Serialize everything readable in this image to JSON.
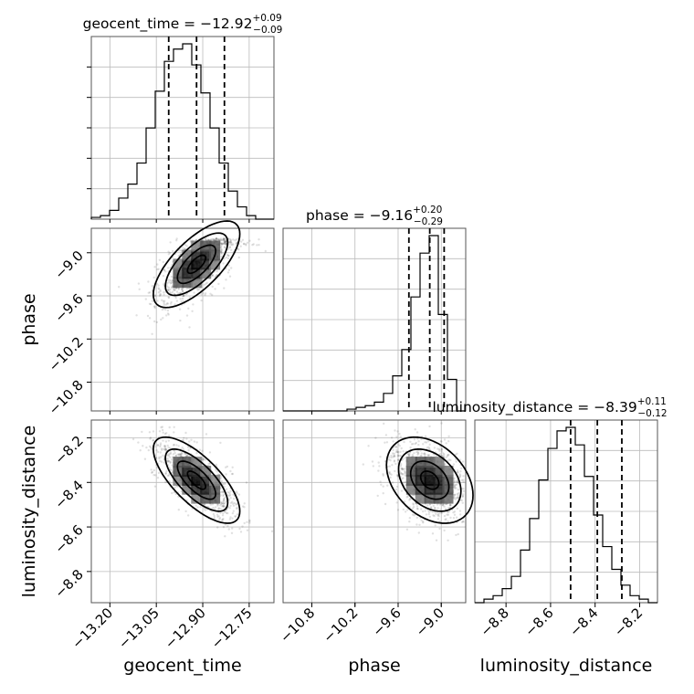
{
  "chart_data": {
    "type": "corner",
    "parameters": [
      {
        "name": "geocent_time",
        "label": "geocent_time",
        "median": -12.92,
        "plus": "0.09",
        "minus": "0.09",
        "title_main": "geocent_time = −12.92",
        "title_plus": "+0.09",
        "title_minus": "−0.09",
        "quantiles": [
          -13.01,
          -12.92,
          -12.83
        ],
        "range": [
          -13.26,
          -12.67
        ],
        "ticks": [
          -13.2,
          -13.05,
          -12.9,
          -12.75
        ],
        "tick_labels": [
          "−13.20",
          "−13.05",
          "−12.90",
          "−12.75"
        ],
        "hist_edges": [
          -13.26,
          -12.67
        ],
        "hist_bins": 20,
        "hist_counts": [
          0.01,
          0.02,
          0.05,
          0.12,
          0.2,
          0.32,
          0.52,
          0.73,
          0.9,
          0.97,
          1.0,
          0.88,
          0.72,
          0.52,
          0.32,
          0.16,
          0.07,
          0.02,
          0.0,
          0.0
        ]
      },
      {
        "name": "phase",
        "label": "phase",
        "median": -9.16,
        "plus": "0.20",
        "minus": "0.29",
        "title_main": "phase = −9.16",
        "title_plus": "+0.20",
        "title_minus": "−0.29",
        "quantiles": [
          -9.45,
          -9.16,
          -8.96
        ],
        "range": [
          -11.2,
          -8.66
        ],
        "ticks": [
          -10.8,
          -10.2,
          -9.6,
          -9.0
        ],
        "tick_labels": [
          "−10.8",
          "−10.2",
          "−9.6",
          "−9.0"
        ],
        "hist_edges": [
          -11.2,
          -8.66
        ],
        "hist_bins": 20,
        "hist_counts": [
          0.0,
          0.0,
          0.0,
          0.0,
          0.0,
          0.0,
          0.0,
          0.01,
          0.02,
          0.03,
          0.05,
          0.1,
          0.2,
          0.35,
          0.65,
          0.9,
          1.0,
          0.55,
          0.18,
          0.0
        ]
      },
      {
        "name": "luminosity_distance",
        "label": "luminosity_distance",
        "median": -8.39,
        "plus": "0.11",
        "minus": "0.12",
        "title_main": "luminosity_distance = −8.39",
        "title_plus": "+0.11",
        "title_minus": "−0.12",
        "quantiles": [
          -8.51,
          -8.39,
          -8.28
        ],
        "range": [
          -8.94,
          -8.12
        ],
        "ticks": [
          -8.8,
          -8.6,
          -8.4,
          -8.2
        ],
        "tick_labels": [
          "−8.8",
          "−8.6",
          "−8.4",
          "−8.2"
        ],
        "hist_edges": [
          -8.94,
          -8.12
        ],
        "hist_bins": 20,
        "hist_counts": [
          0.0,
          0.02,
          0.04,
          0.08,
          0.15,
          0.3,
          0.48,
          0.7,
          0.88,
          0.98,
          1.0,
          0.9,
          0.72,
          0.5,
          0.32,
          0.19,
          0.1,
          0.04,
          0.02,
          0.0
        ]
      }
    ],
    "correlations": {
      "1_0": 0.7,
      "2_0": -0.72,
      "2_1": -0.35
    },
    "grid": true
  }
}
